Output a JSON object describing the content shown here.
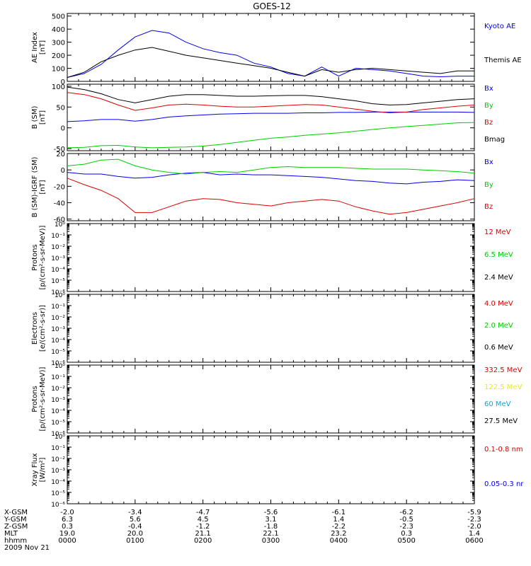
{
  "title": "GOES-12",
  "colors": {
    "black": "#000000",
    "blue": "#0000ee",
    "red": "#dd0000",
    "green": "#00cc00",
    "yellow": "#eeee00",
    "cyan": "#00aadd"
  },
  "chart_data": [
    {
      "type": "line",
      "id": "ae",
      "ylabel": "AE Index",
      "yunit": "[nT]",
      "ylim": [
        0,
        520
      ],
      "yticks": [
        0,
        100,
        200,
        300,
        400,
        500
      ],
      "x_hours": [
        0,
        0.25,
        0.5,
        0.75,
        1,
        1.25,
        1.5,
        1.75,
        2,
        2.25,
        2.5,
        2.75,
        3,
        3.25,
        3.5,
        3.75,
        4,
        4.25,
        4.5,
        4.75,
        5,
        5.25,
        5.5,
        5.75,
        6
      ],
      "series": [
        {
          "name": "Kyoto AE",
          "color": "blue",
          "values": [
            30,
            60,
            130,
            240,
            340,
            390,
            370,
            300,
            250,
            220,
            200,
            140,
            110,
            60,
            40,
            110,
            40,
            100,
            90,
            80,
            60,
            40,
            35,
            40,
            40
          ]
        },
        {
          "name": "Themis AE",
          "color": "black",
          "values": [
            30,
            70,
            150,
            200,
            240,
            260,
            230,
            200,
            180,
            160,
            140,
            120,
            100,
            70,
            40,
            90,
            70,
            90,
            100,
            90,
            80,
            70,
            60,
            80,
            80
          ]
        }
      ]
    },
    {
      "type": "line",
      "id": "bsm",
      "ylabel": "B (SM)",
      "yunit": "[nT]",
      "ylim": [
        -55,
        105
      ],
      "yticks": [
        -50,
        0,
        50,
        100
      ],
      "x_hours": [
        0,
        0.25,
        0.5,
        0.75,
        1,
        1.25,
        1.5,
        1.75,
        2,
        2.25,
        2.5,
        2.75,
        3,
        3.25,
        3.5,
        3.75,
        4,
        4.25,
        4.5,
        4.75,
        5,
        5.25,
        5.5,
        5.75,
        6
      ],
      "series": [
        {
          "name": "Bx",
          "color": "blue",
          "values": [
            15,
            17,
            20,
            20,
            16,
            20,
            26,
            29,
            31,
            33,
            34,
            35,
            35,
            35,
            36,
            36,
            37,
            37,
            38,
            38,
            38,
            38,
            38,
            38,
            37
          ]
        },
        {
          "name": "By",
          "color": "green",
          "values": [
            -48,
            -47,
            -43,
            -42,
            -46,
            -48,
            -47,
            -46,
            -44,
            -40,
            -35,
            -30,
            -25,
            -22,
            -18,
            -15,
            -12,
            -8,
            -4,
            0,
            3,
            6,
            9,
            12,
            13
          ]
        },
        {
          "name": "Bz",
          "color": "red",
          "values": [
            85,
            80,
            70,
            55,
            42,
            48,
            55,
            57,
            55,
            52,
            50,
            50,
            52,
            54,
            56,
            55,
            50,
            45,
            40,
            36,
            38,
            44,
            48,
            52,
            55
          ]
        },
        {
          "name": "Bmag",
          "color": "black",
          "values": [
            98,
            92,
            82,
            68,
            60,
            68,
            76,
            80,
            80,
            78,
            76,
            76,
            77,
            78,
            78,
            75,
            70,
            65,
            58,
            55,
            56,
            60,
            64,
            68,
            70
          ]
        }
      ]
    },
    {
      "type": "line",
      "id": "bigrf",
      "ylabel": "B (SM)-IGRF (SM)",
      "yunit": "[nT]",
      "ylim": [
        -62,
        20
      ],
      "yticks": [
        -60,
        -40,
        -20,
        0,
        20
      ],
      "x_hours": [
        0,
        0.25,
        0.5,
        0.75,
        1,
        1.25,
        1.5,
        1.75,
        2,
        2.25,
        2.5,
        2.75,
        3,
        3.25,
        3.5,
        3.75,
        4,
        4.25,
        4.5,
        4.75,
        5,
        5.25,
        5.5,
        5.75,
        6
      ],
      "series": [
        {
          "name": "Bx",
          "color": "blue",
          "values": [
            -3,
            -5,
            -5,
            -8,
            -10,
            -9,
            -6,
            -4,
            -3,
            -6,
            -5,
            -6,
            -6,
            -7,
            -8,
            -9,
            -11,
            -13,
            -14,
            -16,
            -17,
            -15,
            -14,
            -12,
            -13
          ]
        },
        {
          "name": "By",
          "color": "green",
          "values": [
            5,
            7,
            12,
            13,
            5,
            0,
            -3,
            -5,
            -3,
            -2,
            -3,
            0,
            3,
            4,
            3,
            3,
            3,
            2,
            1,
            1,
            1,
            0,
            -1,
            -2,
            -4
          ]
        },
        {
          "name": "Bz",
          "color": "red",
          "values": [
            -10,
            -18,
            -25,
            -35,
            -52,
            -52,
            -45,
            -38,
            -35,
            -36,
            -40,
            -42,
            -44,
            -40,
            -38,
            -36,
            -38,
            -45,
            -50,
            -54,
            -52,
            -48,
            -44,
            -40,
            -35
          ]
        }
      ]
    },
    {
      "type": "line",
      "id": "protons_low",
      "ylabel": "Protons",
      "yunit": "[p/(cm²-s-sr-MeV)]",
      "ylim_log": [
        -6,
        0
      ],
      "ytick_labels": [
        "10⁰",
        "10⁻¹",
        "10⁻²",
        "10⁻³",
        "10⁻⁴",
        "10⁻⁵",
        "10⁻⁶"
      ],
      "series": [
        {
          "name": "12 MeV",
          "color": "red",
          "values": []
        },
        {
          "name": "6.5 MeV",
          "color": "green",
          "values": []
        },
        {
          "name": "2.4 MeV",
          "color": "black",
          "values": []
        }
      ]
    },
    {
      "type": "line",
      "id": "electrons",
      "ylabel": "Electrons",
      "yunit": "[e/(cm²-s-sr)]",
      "ylim_log": [
        -6,
        0
      ],
      "ytick_labels": [
        "10⁰",
        "10⁻¹",
        "10⁻²",
        "10⁻³",
        "10⁻⁴",
        "10⁻⁵",
        "10⁻⁶"
      ],
      "series": [
        {
          "name": "4.0 MeV",
          "color": "red",
          "values": []
        },
        {
          "name": "2.0 MeV",
          "color": "green",
          "values": []
        },
        {
          "name": "0.6 MeV",
          "color": "black",
          "values": []
        }
      ]
    },
    {
      "type": "line",
      "id": "protons_high",
      "ylabel": "Protons",
      "yunit": "[p/(cm²-s-sr-MeV)]",
      "ylim_log": [
        -6,
        0
      ],
      "ytick_labels": [
        "10⁰",
        "10⁻¹",
        "10⁻²",
        "10⁻³",
        "10⁻⁴",
        "10⁻⁵",
        "10⁻⁶"
      ],
      "series": [
        {
          "name": "332.5 MeV",
          "color": "red",
          "values": []
        },
        {
          "name": "122.5 MeV",
          "color": "yellow",
          "values": []
        },
        {
          "name": "60 MeV",
          "color": "cyan",
          "values": []
        },
        {
          "name": "27.5 MeV",
          "color": "black",
          "values": []
        }
      ]
    },
    {
      "type": "line",
      "id": "xray",
      "ylabel": "Xray Flux",
      "yunit": "[W/m²]",
      "ylim_log": [
        -6,
        0
      ],
      "ytick_labels": [
        "10⁰",
        "10⁻¹",
        "10⁻²",
        "10⁻³",
        "10⁻⁴",
        "10⁻⁵",
        "10⁻⁶"
      ],
      "series": [
        {
          "name": "0.1-0.8 nm",
          "color": "red",
          "values": []
        },
        {
          "name": "0.05-0.3 nr",
          "color": "blue",
          "values": []
        }
      ]
    }
  ],
  "axis_table": {
    "rows": [
      {
        "label": "X-GSM",
        "values": [
          "-2.0",
          "-3.4",
          "-4.7",
          "-5.6",
          "-6.1",
          "-6.2",
          "-5.9"
        ]
      },
      {
        "label": "Y-GSM",
        "values": [
          "6.3",
          "5.6",
          "4.5",
          "3.1",
          "1.4",
          "-0.5",
          "-2.3"
        ]
      },
      {
        "label": "Z-GSM",
        "values": [
          "0.3",
          "-0.4",
          "-1.2",
          "-1.8",
          "-2.2",
          "-2.3",
          "-2.0"
        ]
      },
      {
        "label": "MLT",
        "values": [
          "19.0",
          "20.0",
          "21.1",
          "22.1",
          "23.2",
          "0.3",
          "1.4"
        ]
      },
      {
        "label": "hhmm",
        "values": [
          "0000",
          "0100",
          "0200",
          "0300",
          "0400",
          "0500",
          "0600"
        ]
      }
    ],
    "date": "2009 Nov 21"
  }
}
